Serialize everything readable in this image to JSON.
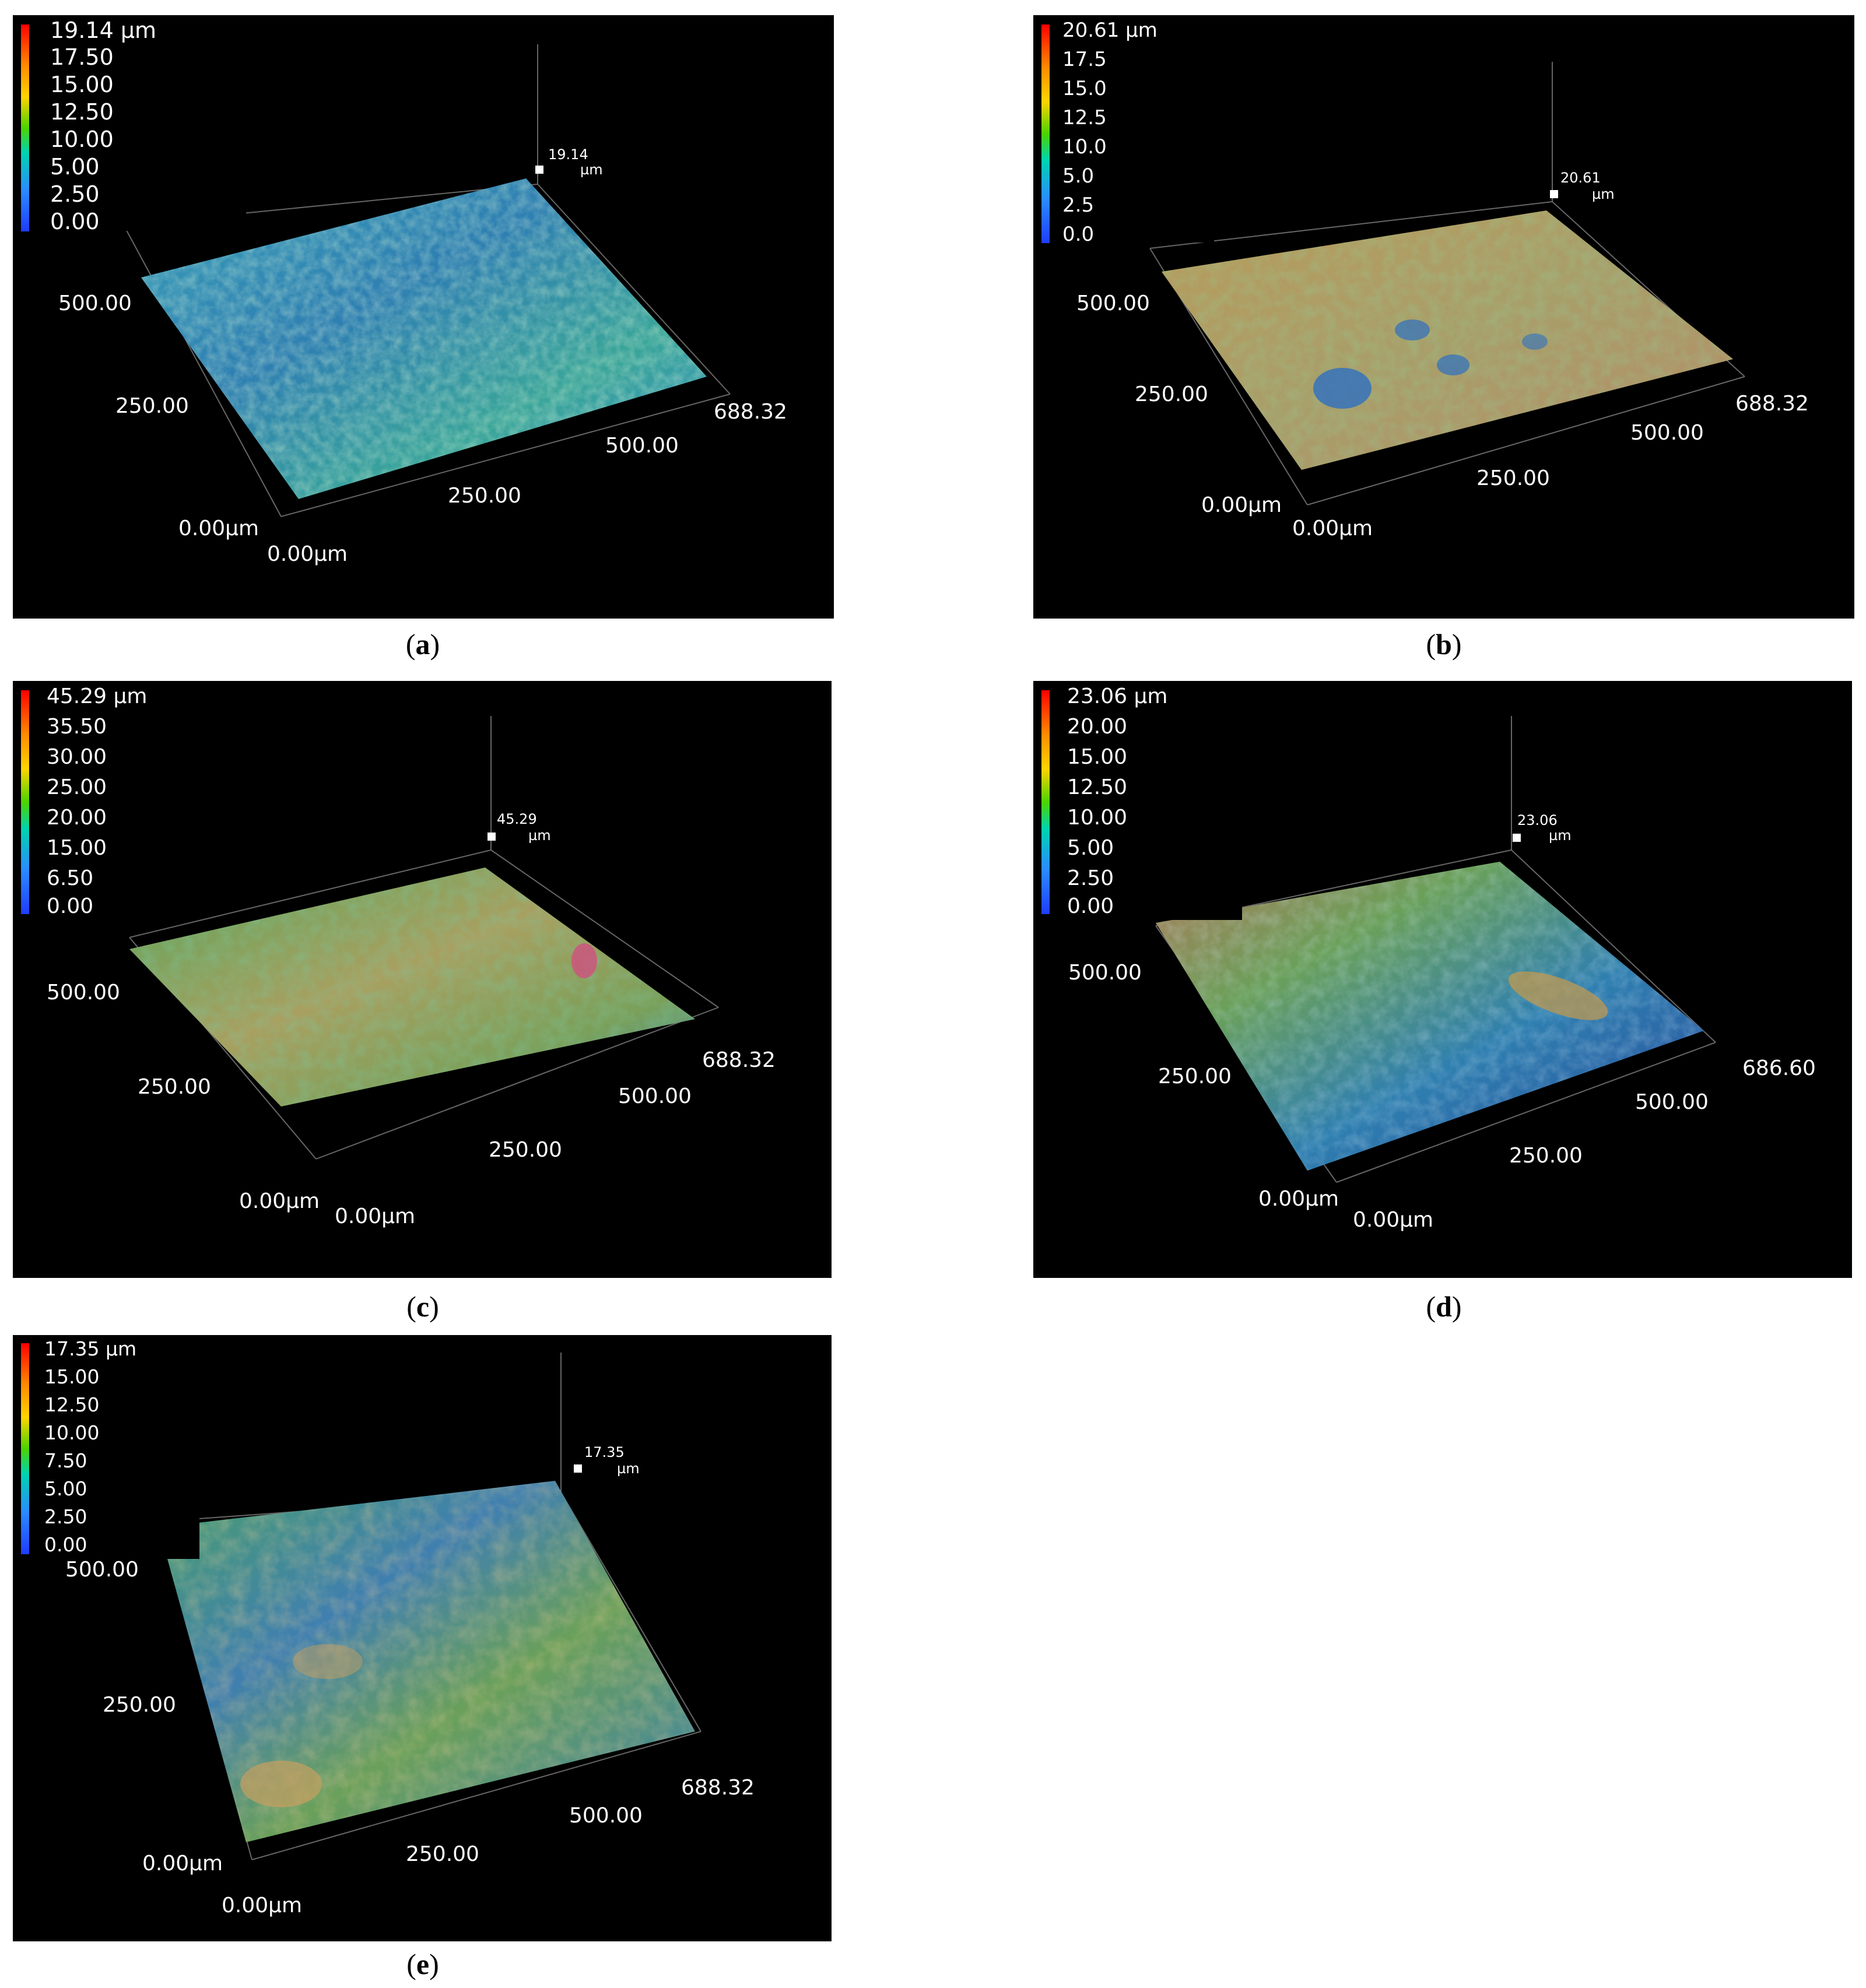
{
  "panels": [
    {
      "id": "a",
      "caption": "a",
      "legend": {
        "top_label": "19.14 µm",
        "labels": [
          "17.50",
          "15.00",
          "12.50",
          "10.00",
          "5.00",
          "2.50",
          "0.00"
        ]
      },
      "height_marker": {
        "value": "19.14",
        "unit": "µm"
      },
      "axes": {
        "y_top": "500.00",
        "y_mid": "250.00",
        "y_origin": "0.00µm",
        "x_origin": "0.00µm",
        "x_mid": "250.00",
        "x_far": "500.00",
        "x_end": "688.32"
      },
      "surface_tone": "blue"
    },
    {
      "id": "b",
      "caption": "b",
      "legend": {
        "top_label": "20.61 µm",
        "labels": [
          "17.5",
          "15.0",
          "12.5",
          "10.0",
          "5.0",
          "2.5",
          "0.0"
        ]
      },
      "height_marker": {
        "value": "20.61",
        "unit": "µm"
      },
      "axes": {
        "y_top": "500.00",
        "y_mid": "250.00",
        "y_origin": "0.00µm",
        "x_origin": "0.00µm",
        "x_mid": "250.00",
        "x_far": "500.00",
        "x_end": "688.32"
      },
      "surface_tone": "tan"
    },
    {
      "id": "c",
      "caption": "c",
      "legend": {
        "top_label": "45.29 µm",
        "labels": [
          "35.50",
          "30.00",
          "25.00",
          "20.00",
          "15.00",
          "6.50",
          "0.00"
        ]
      },
      "height_marker": {
        "value": "45.29",
        "unit": "µm"
      },
      "axes": {
        "y_top": "500.00",
        "y_mid": "250.00",
        "y_origin": "0.00µm",
        "x_origin": "0.00µm",
        "x_mid": "250.00",
        "x_far": "500.00",
        "x_end": "688.32"
      },
      "surface_tone": "green"
    },
    {
      "id": "d",
      "caption": "d",
      "legend": {
        "top_label": "23.06 µm",
        "labels": [
          "20.00",
          "15.00",
          "12.50",
          "10.00",
          "5.00",
          "2.50",
          "0.00"
        ]
      },
      "height_marker": {
        "value": "23.06",
        "unit": "µm"
      },
      "axes": {
        "y_top": "500.00",
        "y_mid": "250.00",
        "y_origin": "0.00µm",
        "x_origin": "0.00µm",
        "x_mid": "250.00",
        "x_far": "500.00",
        "x_end": "686.60"
      },
      "surface_tone": "gradient"
    },
    {
      "id": "e",
      "caption": "e",
      "legend": {
        "top_label": "17.35 µm",
        "labels": [
          "15.00",
          "12.50",
          "10.00",
          "7.50",
          "5.00",
          "2.50",
          "0.00"
        ]
      },
      "height_marker": {
        "value": "17.35",
        "unit": "µm"
      },
      "axes": {
        "y_top": "500.00",
        "y_mid": "250.00",
        "y_origin": "0.00µm",
        "x_origin": "0.00µm",
        "x_mid": "250.00",
        "x_far": "500.00",
        "x_end": "688.32"
      },
      "surface_tone": "mixed"
    }
  ],
  "colors": {
    "background": "#000000",
    "scale": [
      "#ff0000",
      "#ff8c00",
      "#ffd400",
      "#4cd400",
      "#00d4b0",
      "#2a8cff",
      "#1f3cff"
    ]
  }
}
